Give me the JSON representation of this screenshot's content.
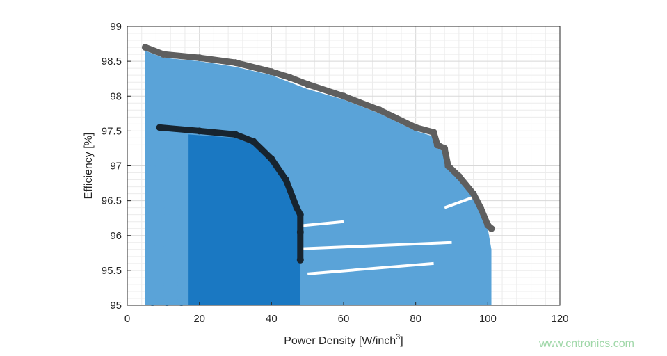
{
  "chart_data": {
    "type": "scatter",
    "xlabel": "Power Density [W/inch",
    "xlabel_sup": "3",
    "xlabel_end": "]",
    "ylabel": "Efficiency [%]",
    "xlim": [
      0,
      120
    ],
    "ylim": [
      95,
      99
    ],
    "xticks": [
      "0",
      "20",
      "40",
      "60",
      "80",
      "100",
      "120"
    ],
    "yticks": [
      "95",
      "95.5",
      "96",
      "96.5",
      "97",
      "97.5",
      "98",
      "98.5",
      "99"
    ],
    "grid": true,
    "minor_grid": true,
    "colors": {
      "cloud_light": "#5aa3d8",
      "cloud_dark": "#1a78c2",
      "front_gray": "#5f5f5f",
      "front_dark": "#17242f"
    },
    "series": [
      {
        "role": "pareto-front-gray",
        "x": [
          5,
          10,
          20,
          30,
          40,
          45,
          50,
          60,
          70,
          80,
          85,
          86,
          88,
          89,
          92,
          96,
          98,
          100,
          101
        ],
        "y": [
          98.7,
          98.6,
          98.55,
          98.48,
          98.35,
          98.27,
          98.17,
          98.0,
          97.8,
          97.55,
          97.48,
          97.3,
          97.25,
          97.0,
          96.85,
          96.6,
          96.4,
          96.15,
          96.1
        ]
      },
      {
        "role": "pareto-front-dark",
        "x": [
          9,
          20,
          30,
          35,
          40,
          44,
          47,
          48,
          48,
          48
        ],
        "y": [
          97.55,
          97.5,
          97.45,
          97.35,
          97.1,
          96.8,
          96.4,
          96.3,
          96.05,
          95.65
        ]
      }
    ],
    "cloud_light_envelope": {
      "x": [
        5,
        10,
        20,
        30,
        40,
        45,
        50,
        60,
        70,
        80,
        85,
        86,
        88,
        89,
        92,
        96,
        98,
        100,
        101,
        101,
        5
      ],
      "y": [
        98.65,
        98.55,
        98.5,
        98.42,
        98.3,
        98.2,
        98.1,
        97.95,
        97.75,
        97.5,
        97.42,
        97.25,
        97.2,
        96.95,
        96.8,
        96.55,
        96.35,
        96.1,
        95.8,
        95,
        95
      ]
    },
    "cloud_dark_envelope": {
      "x": [
        17,
        30,
        35,
        40,
        44,
        47,
        48,
        48,
        17
      ],
      "y": [
        97.45,
        97.4,
        97.3,
        97.05,
        96.75,
        96.35,
        96.2,
        95,
        95
      ]
    }
  },
  "watermark": "www.cntronics.com"
}
